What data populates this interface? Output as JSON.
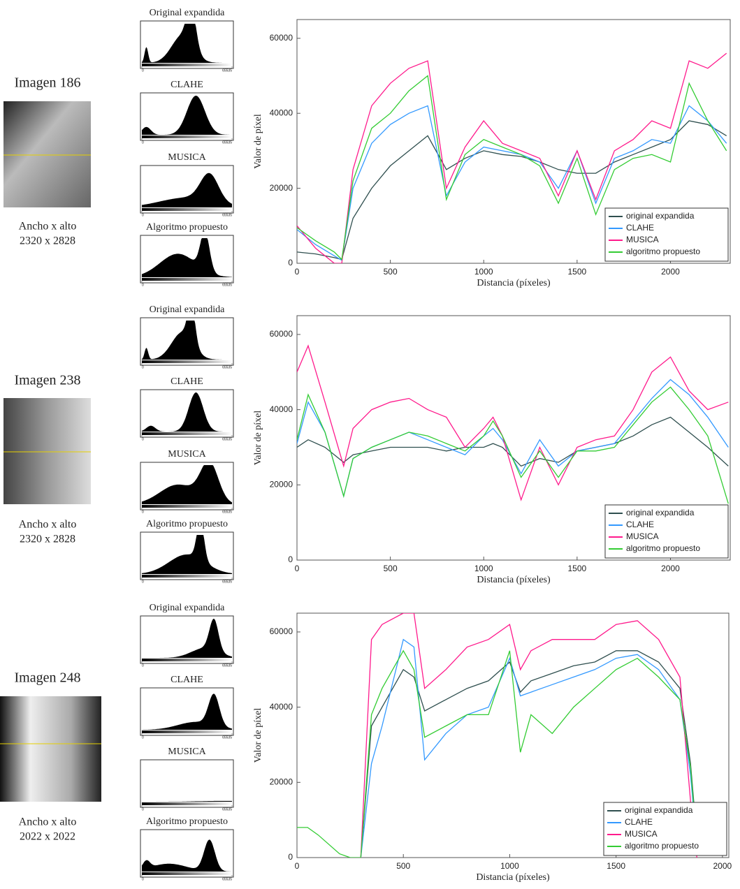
{
  "panels": [
    {
      "label": "Imagen 186",
      "size_label": "Ancho x alto",
      "size": "2320 x 2828",
      "histograms": [
        {
          "title": "Original expandida",
          "xticks": [
            0,
            65535
          ]
        },
        {
          "title": "CLAHE",
          "xticks": [
            0,
            65535
          ]
        },
        {
          "title": "MUSICA",
          "xticks": [
            0,
            65535
          ]
        },
        {
          "title": "Algoritmo propuesto",
          "xticks": [
            0,
            65535
          ]
        }
      ]
    },
    {
      "label": "Imagen 238",
      "size_label": "Ancho x alto",
      "size": "2320 x 2828",
      "histograms": [
        {
          "title": "Original expandida",
          "xticks": [
            0,
            65535
          ]
        },
        {
          "title": "CLAHE",
          "xticks": [
            0,
            65535
          ]
        },
        {
          "title": "MUSICA",
          "xticks": [
            0,
            65535
          ]
        },
        {
          "title": "Algoritmo propuesto",
          "xticks": [
            0,
            65535
          ]
        }
      ]
    },
    {
      "label": "Imagen 248",
      "size_label": "Ancho x alto",
      "size": "2022 x 2022",
      "histograms": [
        {
          "title": "Original expandida",
          "xticks": [
            0,
            65535
          ]
        },
        {
          "title": "CLAHE",
          "xticks": [
            0,
            65535
          ]
        },
        {
          "title": "MUSICA",
          "xticks": [
            0,
            65535
          ]
        },
        {
          "title": "Algoritmo propuesto",
          "xticks": [
            0,
            65535
          ]
        }
      ]
    }
  ],
  "chart_data": [
    {
      "type": "line",
      "xlabel": "Distancia (píxeles)",
      "ylabel": "Valor de píxel",
      "xlim": [
        0,
        2320
      ],
      "ylim": [
        0,
        65000
      ],
      "xticks": [
        0,
        500,
        1000,
        1500,
        2000
      ],
      "yticks": [
        0,
        20000,
        40000,
        60000
      ],
      "legend": "lower right",
      "x": [
        0,
        100,
        200,
        240,
        300,
        400,
        500,
        600,
        700,
        800,
        900,
        1000,
        1100,
        1200,
        1300,
        1400,
        1500,
        1600,
        1700,
        1800,
        1900,
        2000,
        2100,
        2200,
        2300
      ],
      "series": [
        {
          "name": "original expandida",
          "color": "#2f4f4f",
          "values": [
            3000,
            2500,
            1500,
            1000,
            12000,
            20000,
            26000,
            30000,
            34000,
            25000,
            28000,
            30000,
            29000,
            28500,
            27000,
            25000,
            24000,
            24000,
            27000,
            29000,
            31000,
            33000,
            38000,
            37000,
            34000
          ]
        },
        {
          "name": "CLAHE",
          "color": "#3399ff",
          "values": [
            9000,
            5000,
            2000,
            800,
            20000,
            32000,
            37000,
            40000,
            42000,
            18000,
            27000,
            31000,
            30000,
            29000,
            27000,
            20000,
            30000,
            16000,
            28000,
            30000,
            33000,
            32000,
            42000,
            38000,
            32000
          ]
        },
        {
          "name": "MUSICA",
          "color": "#ff1a8c",
          "values": [
            10000,
            4000,
            0,
            0,
            25000,
            42000,
            48000,
            52000,
            54000,
            20000,
            31000,
            38000,
            32000,
            30000,
            28000,
            18000,
            30000,
            17000,
            30000,
            33000,
            38000,
            36000,
            54000,
            52000,
            56000
          ]
        },
        {
          "name": "algoritmo propuesto",
          "color": "#33cc33",
          "values": [
            9500,
            6000,
            3000,
            1000,
            22000,
            36000,
            40000,
            46000,
            50000,
            17000,
            29000,
            33000,
            31000,
            29000,
            26000,
            16000,
            28000,
            13000,
            25000,
            28000,
            29000,
            27000,
            48000,
            38000,
            30000
          ]
        }
      ]
    },
    {
      "type": "line",
      "xlabel": "Distancia (píxeles)",
      "ylabel": "Valor de píxel",
      "xlim": [
        0,
        2320
      ],
      "ylim": [
        0,
        65000
      ],
      "xticks": [
        0,
        500,
        1000,
        1500,
        2000
      ],
      "yticks": [
        0,
        20000,
        40000,
        60000
      ],
      "legend": "lower right",
      "x": [
        0,
        60,
        150,
        250,
        300,
        400,
        500,
        600,
        700,
        800,
        900,
        1000,
        1050,
        1100,
        1200,
        1300,
        1400,
        1500,
        1600,
        1700,
        1800,
        1900,
        2000,
        2100,
        2200,
        2310
      ],
      "series": [
        {
          "name": "original expandida",
          "color": "#2f4f4f",
          "values": [
            30000,
            32000,
            30000,
            26000,
            28000,
            29000,
            30000,
            30000,
            30000,
            29000,
            30000,
            30000,
            31000,
            30000,
            25000,
            27000,
            26000,
            29000,
            30000,
            31000,
            33000,
            36000,
            38000,
            34000,
            30000,
            25000
          ]
        },
        {
          "name": "CLAHE",
          "color": "#3399ff",
          "values": [
            31000,
            42000,
            34000,
            17000,
            27000,
            30000,
            32000,
            34000,
            32000,
            30000,
            28000,
            33000,
            35000,
            32000,
            23000,
            32000,
            25000,
            29000,
            30000,
            31000,
            37000,
            43000,
            48000,
            44000,
            38000,
            30000
          ]
        },
        {
          "name": "MUSICA",
          "color": "#ff1a8c",
          "values": [
            50000,
            57000,
            42000,
            25000,
            35000,
            40000,
            42000,
            43000,
            40000,
            38000,
            30000,
            35000,
            38000,
            33000,
            16000,
            30000,
            20000,
            30000,
            32000,
            33000,
            40000,
            50000,
            54000,
            45000,
            40000,
            42000
          ]
        },
        {
          "name": "algoritmo propuesto",
          "color": "#33cc33",
          "values": [
            32000,
            44000,
            34000,
            17000,
            27000,
            30000,
            32000,
            34000,
            33000,
            31000,
            29000,
            33000,
            37000,
            33000,
            22000,
            29000,
            22000,
            29000,
            29000,
            30000,
            36000,
            42000,
            46000,
            40000,
            33000,
            15000
          ]
        }
      ]
    },
    {
      "type": "line",
      "xlabel": "Distancia (píxeles)",
      "ylabel": "Valor de píxel",
      "xlim": [
        0,
        2030
      ],
      "ylim": [
        0,
        65000
      ],
      "xticks": [
        0,
        500,
        1000,
        1500,
        2000
      ],
      "yticks": [
        0,
        20000,
        40000,
        60000
      ],
      "legend": "lower right",
      "x": [
        0,
        50,
        100,
        200,
        250,
        300,
        350,
        400,
        500,
        550,
        600,
        700,
        800,
        900,
        1000,
        1050,
        1100,
        1200,
        1300,
        1400,
        1500,
        1600,
        1700,
        1800,
        1850,
        1880
      ],
      "series": [
        {
          "name": "original expandida",
          "color": "#2f4f4f",
          "values": [
            null,
            null,
            null,
            null,
            null,
            0,
            35000,
            40000,
            50000,
            48000,
            39000,
            42000,
            45000,
            47000,
            52000,
            44000,
            47000,
            49000,
            51000,
            52000,
            55000,
            55000,
            52000,
            45000,
            25000,
            5000
          ]
        },
        {
          "name": "CLAHE",
          "color": "#3399ff",
          "values": [
            null,
            null,
            null,
            null,
            null,
            0,
            25000,
            35000,
            58000,
            56000,
            26000,
            33000,
            38000,
            40000,
            53000,
            43000,
            44000,
            46000,
            48000,
            50000,
            53000,
            54000,
            50000,
            42000,
            22000,
            3000
          ]
        },
        {
          "name": "MUSICA",
          "color": "#ff1a8c",
          "values": [
            null,
            null,
            null,
            null,
            null,
            0,
            58000,
            62000,
            65000,
            65000,
            45000,
            50000,
            56000,
            58000,
            62000,
            50000,
            55000,
            58000,
            58000,
            58000,
            62000,
            63000,
            58000,
            48000,
            15000,
            0
          ]
        },
        {
          "name": "algoritmo propuesto",
          "color": "#33cc33",
          "values": [
            8000,
            8000,
            6000,
            1000,
            0,
            0,
            38000,
            45000,
            55000,
            50000,
            32000,
            35000,
            38000,
            38000,
            55000,
            28000,
            38000,
            33000,
            40000,
            45000,
            50000,
            53000,
            48000,
            42000,
            24000,
            4000
          ]
        }
      ]
    }
  ]
}
